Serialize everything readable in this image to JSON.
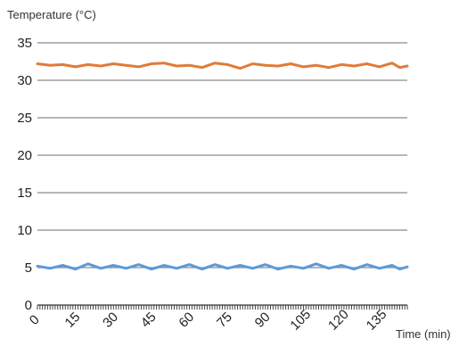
{
  "chart_data": {
    "type": "line",
    "title": "",
    "ylabel": "Temperature (°C)",
    "xlabel": "Time (min)",
    "ylim": [
      0,
      35
    ],
    "xlim": [
      0,
      146
    ],
    "y_ticks": [
      0,
      5,
      10,
      15,
      20,
      25,
      30,
      35
    ],
    "x_ticks": [
      0,
      15,
      30,
      45,
      60,
      75,
      90,
      105,
      120,
      135
    ],
    "x_minor_step": 1,
    "grid": true,
    "legend": "none",
    "series": [
      {
        "color": "#e07b39",
        "x": [
          0,
          5,
          10,
          15,
          20,
          25,
          30,
          35,
          40,
          45,
          50,
          55,
          60,
          65,
          70,
          75,
          80,
          85,
          90,
          95,
          100,
          105,
          110,
          115,
          120,
          125,
          130,
          135,
          140,
          143,
          146
        ],
        "y": [
          32.2,
          32.0,
          32.1,
          31.8,
          32.1,
          31.9,
          32.2,
          32.0,
          31.8,
          32.2,
          32.3,
          31.9,
          32.0,
          31.7,
          32.3,
          32.1,
          31.6,
          32.2,
          32.0,
          31.9,
          32.2,
          31.8,
          32.0,
          31.7,
          32.1,
          31.9,
          32.2,
          31.8,
          32.3,
          31.7,
          31.9
        ]
      },
      {
        "color": "#5b9bd5",
        "x": [
          0,
          5,
          10,
          15,
          20,
          25,
          30,
          35,
          40,
          45,
          50,
          55,
          60,
          65,
          70,
          75,
          80,
          85,
          90,
          95,
          100,
          105,
          110,
          115,
          120,
          125,
          130,
          135,
          140,
          143,
          146
        ],
        "y": [
          5.2,
          4.9,
          5.3,
          4.8,
          5.5,
          4.9,
          5.3,
          4.9,
          5.4,
          4.8,
          5.3,
          4.9,
          5.4,
          4.8,
          5.4,
          4.9,
          5.3,
          4.9,
          5.4,
          4.8,
          5.2,
          4.9,
          5.5,
          4.9,
          5.3,
          4.8,
          5.4,
          4.9,
          5.3,
          4.8,
          5.1
        ]
      }
    ]
  }
}
